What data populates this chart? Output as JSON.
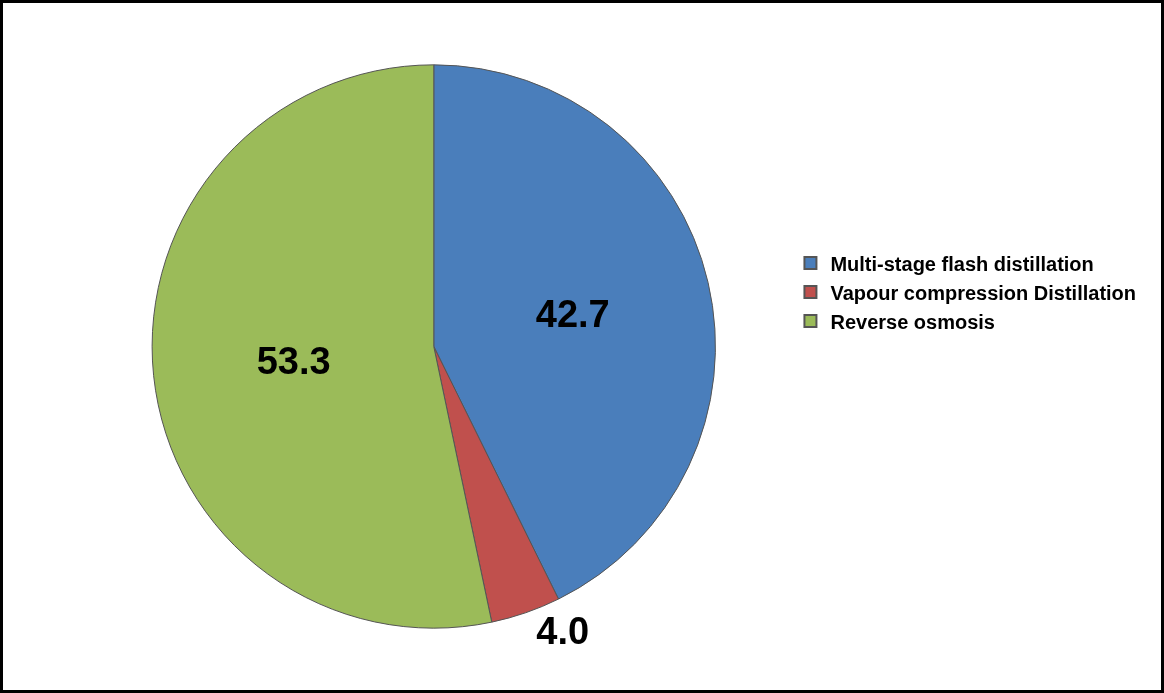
{
  "chart_data": {
    "type": "pie",
    "categories": [
      "Multi-stage flash distillation",
      "Vapour compression Distillation",
      "Reverse osmosis"
    ],
    "values": [
      42.7,
      4.0,
      53.3
    ],
    "value_labels": [
      "42.7",
      "4.0",
      "53.3"
    ],
    "colors": [
      "#4a7ebb",
      "#c0504d",
      "#9bbb59"
    ],
    "legend": "right"
  }
}
